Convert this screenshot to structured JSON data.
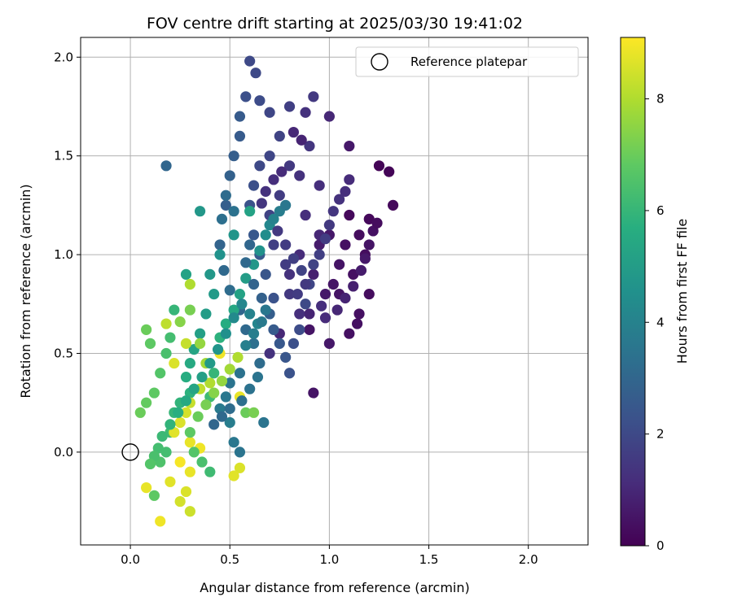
{
  "chart_data": {
    "type": "scatter",
    "title": "FOV centre drift starting at 2025/03/30 19:41:02",
    "xlabel": "Angular distance from reference (arcmin)",
    "ylabel": "Rotation from reference (arcmin)",
    "xlim": [
      -0.25,
      2.3
    ],
    "ylim": [
      -0.47,
      2.1
    ],
    "xticks": [
      0.0,
      0.5,
      1.0,
      1.5,
      2.0
    ],
    "xtick_labels": [
      "0.0",
      "0.5",
      "1.0",
      "1.5",
      "2.0"
    ],
    "yticks": [
      0.0,
      0.5,
      1.0,
      1.5,
      2.0
    ],
    "ytick_labels": [
      "0.0",
      "0.5",
      "1.0",
      "1.5",
      "2.0"
    ],
    "grid": true,
    "legend": {
      "position": "top-right",
      "entries": [
        "Reference platepar"
      ]
    },
    "colorbar": {
      "label": "Hours from first FF file",
      "range": [
        0,
        9.1
      ],
      "ticks": [
        0,
        2,
        4,
        6,
        8
      ],
      "tick_labels": [
        "0",
        "2",
        "4",
        "6",
        "8"
      ],
      "colormap": "viridis"
    },
    "reference_point": {
      "x": 0.0,
      "y": 0.0,
      "label": "Reference platepar"
    },
    "series": [
      {
        "note_columns": [
          "x",
          "y",
          "hours"
        ],
        "points": [
          [
            1.1,
            1.2,
            0.2
          ],
          [
            1.15,
            1.1,
            0.3
          ],
          [
            1.08,
            1.05,
            0.4
          ],
          [
            1.2,
            1.18,
            0.2
          ],
          [
            1.05,
            0.95,
            0.5
          ],
          [
            1.12,
            0.9,
            0.4
          ],
          [
            1.25,
            1.45,
            0.1
          ],
          [
            1.3,
            1.42,
            0.1
          ],
          [
            1.32,
            1.25,
            0.2
          ],
          [
            1.18,
            1.0,
            0.3
          ],
          [
            1.0,
            1.1,
            0.6
          ],
          [
            1.02,
            0.85,
            0.5
          ],
          [
            0.95,
            1.05,
            0.7
          ],
          [
            0.98,
            0.8,
            0.6
          ],
          [
            1.1,
            0.6,
            0.4
          ],
          [
            1.14,
            0.65,
            0.4
          ],
          [
            1.05,
            0.8,
            0.5
          ],
          [
            0.92,
            0.9,
            0.8
          ],
          [
            0.9,
            0.62,
            0.5
          ],
          [
            1.1,
            1.55,
            0.6
          ],
          [
            1.0,
            1.7,
            1.0
          ],
          [
            0.95,
            1.1,
            1.0
          ],
          [
            0.88,
            1.2,
            1.2
          ],
          [
            0.85,
            1.0,
            1.1
          ],
          [
            0.8,
            0.9,
            1.3
          ],
          [
            0.9,
            0.7,
            0.9
          ],
          [
            1.2,
            0.8,
            0.3
          ],
          [
            1.15,
            0.7,
            0.4
          ],
          [
            1.0,
            0.55,
            0.6
          ],
          [
            0.92,
            0.3,
            0.5
          ],
          [
            0.95,
            1.35,
            1.2
          ],
          [
            0.85,
            1.4,
            1.3
          ],
          [
            0.9,
            1.55,
            1.4
          ],
          [
            0.8,
            1.45,
            1.5
          ],
          [
            0.75,
            1.3,
            1.6
          ],
          [
            0.7,
            1.2,
            1.8
          ],
          [
            0.72,
            1.05,
            1.7
          ],
          [
            0.78,
            0.95,
            1.6
          ],
          [
            0.8,
            0.8,
            1.5
          ],
          [
            0.85,
            0.7,
            1.2
          ],
          [
            0.75,
            0.6,
            1.0
          ],
          [
            0.7,
            0.5,
            1.3
          ],
          [
            0.88,
            1.72,
            1.3
          ],
          [
            0.92,
            1.8,
            1.5
          ],
          [
            0.8,
            1.75,
            1.7
          ],
          [
            0.75,
            1.6,
            1.8
          ],
          [
            0.7,
            1.5,
            1.9
          ],
          [
            0.65,
            1.45,
            2.0
          ],
          [
            0.62,
            1.35,
            2.2
          ],
          [
            0.6,
            1.25,
            2.3
          ],
          [
            0.62,
            1.1,
            2.5
          ],
          [
            0.65,
            1.0,
            2.6
          ],
          [
            0.68,
            0.9,
            2.4
          ],
          [
            0.72,
            0.78,
            2.3
          ],
          [
            0.6,
            1.98,
            2.0
          ],
          [
            0.63,
            1.92,
            2.0
          ],
          [
            0.58,
            1.8,
            2.2
          ],
          [
            0.65,
            1.78,
            2.1
          ],
          [
            0.7,
            1.72,
            1.9
          ],
          [
            0.55,
            1.7,
            2.6
          ],
          [
            0.55,
            1.6,
            2.6
          ],
          [
            0.52,
            1.5,
            2.7
          ],
          [
            0.5,
            1.4,
            2.8
          ],
          [
            0.48,
            1.25,
            2.7
          ],
          [
            0.45,
            1.05,
            2.9
          ],
          [
            0.47,
            0.92,
            3.1
          ],
          [
            0.5,
            0.82,
            3.2
          ],
          [
            0.55,
            0.72,
            3.0
          ],
          [
            0.58,
            0.62,
            3.1
          ],
          [
            0.62,
            0.55,
            3.3
          ],
          [
            0.65,
            0.45,
            3.2
          ],
          [
            0.55,
            0.4,
            3.4
          ],
          [
            0.5,
            0.35,
            3.5
          ],
          [
            0.48,
            0.28,
            3.6
          ],
          [
            0.45,
            0.22,
            3.7
          ],
          [
            0.5,
            0.15,
            3.8
          ],
          [
            0.52,
            0.05,
            3.6
          ],
          [
            0.55,
            0.0,
            3.5
          ],
          [
            0.18,
            1.45,
            3.0
          ],
          [
            0.35,
            1.22,
            4.8
          ],
          [
            0.6,
            1.22,
            5.2
          ],
          [
            0.52,
            1.1,
            4.7
          ],
          [
            0.45,
            1.0,
            4.6
          ],
          [
            0.4,
            0.9,
            4.8
          ],
          [
            0.42,
            0.8,
            4.9
          ],
          [
            0.38,
            0.7,
            5.0
          ],
          [
            0.35,
            0.6,
            5.1
          ],
          [
            0.32,
            0.52,
            5.3
          ],
          [
            0.3,
            0.45,
            5.5
          ],
          [
            0.28,
            0.38,
            5.6
          ],
          [
            0.3,
            0.3,
            5.8
          ],
          [
            0.25,
            0.25,
            5.9
          ],
          [
            0.22,
            0.2,
            6.0
          ],
          [
            0.2,
            0.1,
            6.2
          ],
          [
            0.18,
            0.0,
            6.3
          ],
          [
            0.15,
            -0.05,
            6.5
          ],
          [
            0.28,
            0.9,
            5.2
          ],
          [
            0.22,
            0.72,
            6.0
          ],
          [
            0.2,
            0.58,
            6.3
          ],
          [
            0.18,
            0.5,
            6.4
          ],
          [
            0.15,
            0.4,
            6.6
          ],
          [
            0.12,
            0.3,
            6.8
          ],
          [
            0.08,
            0.25,
            6.9
          ],
          [
            0.05,
            0.2,
            7.0
          ],
          [
            0.1,
            0.55,
            6.8
          ],
          [
            0.08,
            0.62,
            7.0
          ],
          [
            0.3,
            0.72,
            7.2
          ],
          [
            0.25,
            0.66,
            7.4
          ],
          [
            0.35,
            0.55,
            7.6
          ],
          [
            0.38,
            0.45,
            7.8
          ],
          [
            0.4,
            0.35,
            8.0
          ],
          [
            0.35,
            0.32,
            8.2
          ],
          [
            0.3,
            0.25,
            8.3
          ],
          [
            0.28,
            0.2,
            8.5
          ],
          [
            0.25,
            0.15,
            8.6
          ],
          [
            0.22,
            0.1,
            8.7
          ],
          [
            0.3,
            0.05,
            8.8
          ],
          [
            0.35,
            0.02,
            8.9
          ],
          [
            0.25,
            -0.05,
            9.0
          ],
          [
            0.3,
            -0.1,
            8.8
          ],
          [
            0.2,
            -0.15,
            8.7
          ],
          [
            0.28,
            -0.2,
            8.6
          ],
          [
            0.25,
            -0.25,
            8.5
          ],
          [
            0.3,
            -0.3,
            8.4
          ],
          [
            0.15,
            -0.35,
            8.9
          ],
          [
            0.08,
            -0.18,
            8.8
          ],
          [
            0.55,
            -0.08,
            8.6
          ],
          [
            0.52,
            -0.12,
            8.7
          ],
          [
            0.55,
            0.28,
            8.8
          ],
          [
            0.58,
            0.2,
            7.0
          ],
          [
            0.62,
            0.2,
            7.2
          ],
          [
            0.45,
            0.5,
            8.9
          ],
          [
            0.3,
            0.85,
            8.0
          ],
          [
            0.22,
            0.45,
            8.6
          ],
          [
            0.18,
            0.65,
            8.2
          ],
          [
            0.28,
            0.55,
            8.3
          ],
          [
            0.4,
            0.28,
            6.2
          ],
          [
            0.42,
            0.4,
            6.0
          ],
          [
            0.45,
            0.58,
            5.8
          ],
          [
            0.48,
            0.65,
            5.6
          ],
          [
            0.52,
            0.72,
            5.4
          ],
          [
            0.55,
            0.8,
            5.2
          ],
          [
            0.58,
            0.88,
            5.0
          ],
          [
            0.62,
            0.95,
            4.8
          ],
          [
            0.65,
            1.02,
            4.6
          ],
          [
            0.68,
            1.1,
            4.4
          ],
          [
            0.7,
            1.15,
            4.2
          ],
          [
            0.72,
            1.18,
            4.0
          ],
          [
            0.75,
            1.22,
            3.8
          ],
          [
            0.78,
            1.25,
            3.6
          ],
          [
            0.52,
            1.22,
            3.4
          ],
          [
            0.48,
            1.3,
            3.2
          ],
          [
            0.46,
            1.18,
            3.3
          ],
          [
            0.6,
            1.05,
            3.0
          ],
          [
            0.58,
            0.96,
            3.1
          ],
          [
            0.62,
            0.85,
            2.9
          ],
          [
            0.66,
            0.78,
            2.8
          ],
          [
            0.7,
            0.7,
            2.7
          ],
          [
            0.72,
            0.62,
            2.6
          ],
          [
            0.75,
            0.55,
            2.5
          ],
          [
            0.78,
            0.48,
            2.4
          ],
          [
            0.8,
            0.4,
            2.3
          ],
          [
            0.82,
            0.55,
            2.2
          ],
          [
            0.85,
            0.62,
            2.1
          ],
          [
            0.88,
            0.75,
            2.0
          ],
          [
            0.9,
            0.85,
            1.9
          ],
          [
            0.92,
            0.95,
            1.8
          ],
          [
            0.95,
            1.0,
            1.7
          ],
          [
            0.98,
            1.08,
            1.6
          ],
          [
            1.0,
            1.15,
            1.5
          ],
          [
            1.02,
            1.22,
            1.4
          ],
          [
            1.05,
            1.28,
            1.3
          ],
          [
            1.08,
            1.32,
            1.2
          ],
          [
            1.1,
            1.38,
            1.1
          ],
          [
            0.82,
            1.62,
            1.0
          ],
          [
            0.86,
            1.58,
            0.9
          ],
          [
            0.76,
            1.42,
            1.1
          ],
          [
            0.72,
            1.38,
            1.2
          ],
          [
            0.68,
            1.32,
            1.3
          ],
          [
            0.66,
            1.26,
            1.4
          ],
          [
            0.74,
            1.12,
            1.5
          ],
          [
            0.78,
            1.05,
            1.6
          ],
          [
            0.82,
            0.98,
            1.7
          ],
          [
            0.86,
            0.92,
            1.8
          ],
          [
            0.88,
            0.85,
            1.5
          ],
          [
            0.84,
            0.8,
            1.6
          ],
          [
            0.96,
            0.74,
            1.2
          ],
          [
            0.98,
            0.68,
            1.1
          ],
          [
            1.04,
            0.72,
            1.0
          ],
          [
            1.08,
            0.78,
            0.9
          ],
          [
            1.12,
            0.84,
            0.8
          ],
          [
            1.16,
            0.92,
            0.7
          ],
          [
            1.18,
            0.98,
            0.6
          ],
          [
            1.2,
            1.05,
            0.5
          ],
          [
            1.22,
            1.12,
            0.4
          ],
          [
            1.24,
            1.16,
            0.3
          ],
          [
            0.6,
            0.7,
            4.0
          ],
          [
            0.64,
            0.65,
            4.1
          ],
          [
            0.56,
            0.75,
            4.2
          ],
          [
            0.52,
            0.68,
            4.3
          ],
          [
            0.48,
            0.6,
            4.5
          ],
          [
            0.44,
            0.52,
            4.7
          ],
          [
            0.4,
            0.45,
            4.9
          ],
          [
            0.36,
            0.38,
            5.1
          ],
          [
            0.32,
            0.32,
            5.3
          ],
          [
            0.28,
            0.26,
            5.5
          ],
          [
            0.24,
            0.2,
            5.7
          ],
          [
            0.2,
            0.14,
            5.9
          ],
          [
            0.16,
            0.08,
            6.1
          ],
          [
            0.14,
            0.02,
            6.3
          ],
          [
            0.12,
            -0.02,
            6.4
          ],
          [
            0.1,
            -0.06,
            6.6
          ],
          [
            0.12,
            -0.22,
            6.8
          ],
          [
            0.4,
            -0.1,
            6.2
          ],
          [
            0.36,
            -0.05,
            6.4
          ],
          [
            0.32,
            0.0,
            6.6
          ],
          [
            0.3,
            0.1,
            6.8
          ],
          [
            0.34,
            0.18,
            7.0
          ],
          [
            0.38,
            0.24,
            7.2
          ],
          [
            0.42,
            0.3,
            7.4
          ],
          [
            0.46,
            0.36,
            7.6
          ],
          [
            0.5,
            0.42,
            7.8
          ],
          [
            0.54,
            0.48,
            8.0
          ],
          [
            0.58,
            0.54,
            3.9
          ],
          [
            0.62,
            0.6,
            3.8
          ],
          [
            0.66,
            0.66,
            3.7
          ],
          [
            0.68,
            0.72,
            3.6
          ],
          [
            0.64,
            0.38,
            3.5
          ],
          [
            0.6,
            0.32,
            3.4
          ],
          [
            0.56,
            0.26,
            3.3
          ],
          [
            0.5,
            0.22,
            3.2
          ],
          [
            0.46,
            0.18,
            3.1
          ],
          [
            0.42,
            0.14,
            3.0
          ],
          [
            0.67,
            0.15,
            3.5
          ]
        ]
      }
    ]
  }
}
